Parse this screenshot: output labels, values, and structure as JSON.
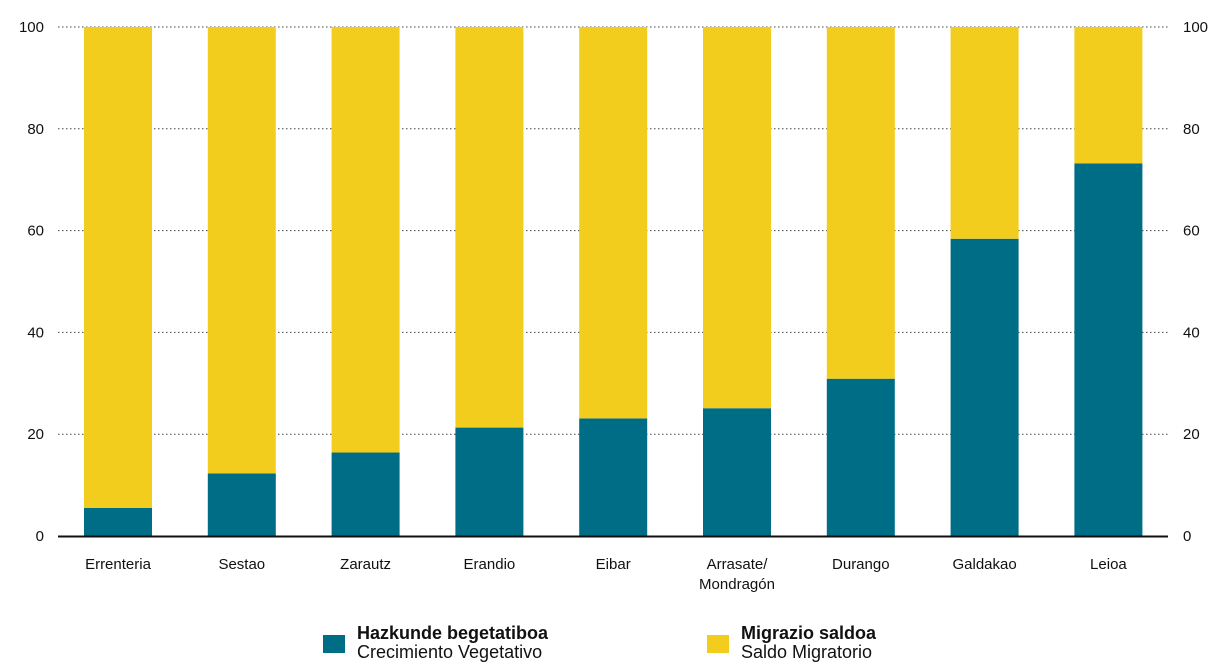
{
  "chart_data": {
    "type": "bar",
    "stacked": true,
    "categories": [
      "Errenteria",
      "Sestao",
      "Zarautz",
      "Erandio",
      "Eibar",
      "Arrasate/\nMondragón",
      "Durango",
      "Galdakao",
      "Leioa"
    ],
    "series": [
      {
        "name": "Hazkunde begetatiboa",
        "subtitle": "Crecimiento Vegetativo",
        "color": "#006d86",
        "values": [
          5.5,
          12.3,
          16.4,
          21.3,
          23.1,
          25.1,
          30.9,
          58.4,
          73.2
        ]
      },
      {
        "name": "Migrazio saldoa",
        "subtitle": "Saldo Migratorio",
        "color": "#f2cd1d",
        "values": [
          94.5,
          87.7,
          83.6,
          78.7,
          76.9,
          74.9,
          69.1,
          41.6,
          26.8
        ]
      }
    ],
    "ylim": [
      0,
      100
    ],
    "yticks": [
      0,
      20,
      40,
      60,
      80,
      100
    ],
    "grid": true,
    "secondary_y_axis": true,
    "legend_position": "bottom"
  }
}
